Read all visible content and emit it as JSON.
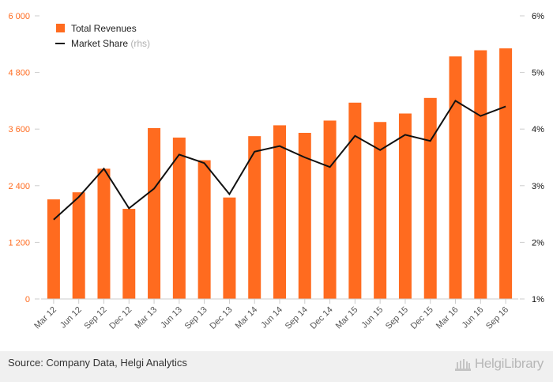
{
  "chart_data": {
    "type": "bar",
    "categories": [
      "Mar 12",
      "Jun 12",
      "Sep 12",
      "Dec 12",
      "Mar 13",
      "Jun 13",
      "Sep 13",
      "Dec 13",
      "Mar 14",
      "Jun 14",
      "Sep 14",
      "Dec 14",
      "Mar 15",
      "Jun 15",
      "Sep 15",
      "Dec 15",
      "Mar 16",
      "Jun 16",
      "Sep 16"
    ],
    "series": [
      {
        "name": "Total Revenues",
        "type": "bar",
        "axis": "left",
        "color": "#ff6b1f",
        "values": [
          2110,
          2260,
          2760,
          1910,
          3620,
          3420,
          2940,
          2150,
          3450,
          3680,
          3520,
          3780,
          4160,
          3750,
          3930,
          4260,
          5140,
          5270,
          5310
        ]
      },
      {
        "name": "Market Share",
        "name_suffix": "(rhs)",
        "type": "line",
        "axis": "right",
        "color": "#111111",
        "values": [
          2.4,
          2.8,
          3.3,
          2.6,
          2.95,
          3.55,
          3.4,
          2.85,
          3.6,
          3.7,
          3.5,
          3.33,
          3.88,
          3.63,
          3.9,
          3.79,
          4.5,
          4.23,
          4.4
        ]
      }
    ],
    "y_left": {
      "ylim": [
        0,
        6000
      ],
      "ticks": [
        "0",
        "1 200",
        "2 400",
        "3 600",
        "4 800",
        "6 000"
      ]
    },
    "y_right": {
      "ylim": [
        1,
        6
      ],
      "ticks": [
        "1%",
        "2%",
        "3%",
        "4%",
        "5%",
        "6%"
      ]
    },
    "legend_position": "top-left",
    "grid": false
  },
  "footer": {
    "source": "Source: Company Data, Helgi Analytics",
    "logo_text": "HelgiLibrary"
  },
  "colors": {
    "accent": "#ff6b1f",
    "left_axis_text": "#ff6b1f",
    "right_axis_text": "#111111",
    "footer_bg": "#f0f0f0"
  }
}
